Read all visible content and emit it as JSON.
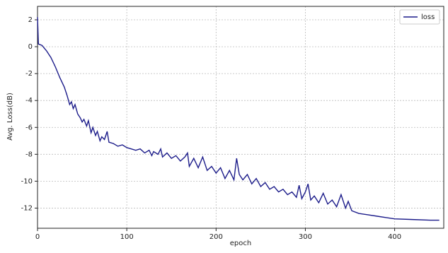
{
  "chart_data": {
    "type": "line",
    "x_label": "epoch",
    "y_label": "Avg. Loss(dB)",
    "xlim": [
      0,
      455
    ],
    "ylim": [
      -13.5,
      3
    ],
    "xticks": [
      0,
      100,
      200,
      300,
      400
    ],
    "yticks": [
      2,
      0,
      -2,
      -4,
      -6,
      -8,
      -10,
      -12
    ],
    "grid": true,
    "legend": "upper right",
    "series": [
      {
        "name": "loss",
        "color": "#1c1c8a",
        "x": [
          0,
          1,
          5,
          10,
          15,
          20,
          25,
          30,
          33,
          36,
          38,
          40,
          42,
          45,
          48,
          50,
          52,
          55,
          57,
          60,
          62,
          65,
          67,
          70,
          72,
          75,
          78,
          80,
          85,
          90,
          95,
          100,
          105,
          110,
          115,
          120,
          125,
          128,
          130,
          135,
          138,
          140,
          145,
          150,
          155,
          160,
          165,
          168,
          170,
          175,
          180,
          185,
          188,
          190,
          195,
          200,
          205,
          210,
          215,
          220,
          223,
          226,
          230,
          235,
          240,
          245,
          250,
          255,
          260,
          265,
          270,
          275,
          280,
          285,
          290,
          293,
          296,
          300,
          303,
          306,
          310,
          315,
          320,
          325,
          330,
          335,
          340,
          345,
          348,
          352,
          360,
          370,
          380,
          390,
          400,
          420,
          440,
          450
        ],
        "values": [
          2.2,
          0.2,
          0.1,
          -0.3,
          -0.8,
          -1.5,
          -2.3,
          -3.0,
          -3.6,
          -4.3,
          -4.1,
          -4.6,
          -4.3,
          -5.0,
          -5.3,
          -5.6,
          -5.4,
          -5.9,
          -5.5,
          -6.4,
          -6.0,
          -6.6,
          -6.3,
          -7.0,
          -6.7,
          -6.9,
          -6.3,
          -7.1,
          -7.2,
          -7.4,
          -7.3,
          -7.5,
          -7.6,
          -7.7,
          -7.6,
          -7.9,
          -7.7,
          -8.1,
          -7.8,
          -8.0,
          -7.6,
          -8.2,
          -7.9,
          -8.3,
          -8.1,
          -8.5,
          -8.2,
          -7.9,
          -8.9,
          -8.3,
          -9.0,
          -8.2,
          -8.8,
          -9.2,
          -8.9,
          -9.4,
          -9.0,
          -9.8,
          -9.2,
          -9.9,
          -8.3,
          -9.5,
          -9.9,
          -9.5,
          -10.2,
          -9.8,
          -10.4,
          -10.1,
          -10.6,
          -10.4,
          -10.8,
          -10.6,
          -11.0,
          -10.8,
          -11.2,
          -10.3,
          -11.3,
          -10.8,
          -10.2,
          -11.4,
          -11.1,
          -11.6,
          -10.9,
          -11.7,
          -11.4,
          -11.9,
          -11.0,
          -12.0,
          -11.5,
          -12.2,
          -12.4,
          -12.5,
          -12.6,
          -12.7,
          -12.8,
          -12.85,
          -12.9,
          -12.9
        ]
      }
    ]
  }
}
